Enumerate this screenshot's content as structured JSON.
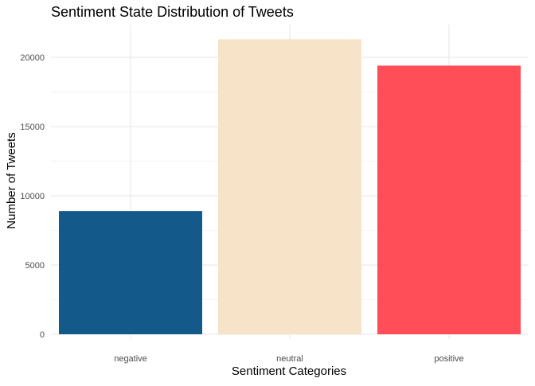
{
  "chart_data": {
    "type": "bar",
    "title": "Sentiment State Distribution of Tweets",
    "xlabel": "Sentiment Categories",
    "ylabel": "Number of Tweets",
    "categories": [
      "negative",
      "neutral",
      "positive"
    ],
    "values": [
      8900,
      21300,
      19400
    ],
    "colors": [
      "#135a8a",
      "#f6e3c8",
      "#ff4e58"
    ],
    "ylim": [
      0,
      22500
    ],
    "yticks": [
      0,
      5000,
      10000,
      15000,
      20000
    ],
    "ytick_labels": [
      "0",
      "5000",
      "10000",
      "15000",
      "20000"
    ],
    "grid": true,
    "legend": "none"
  }
}
